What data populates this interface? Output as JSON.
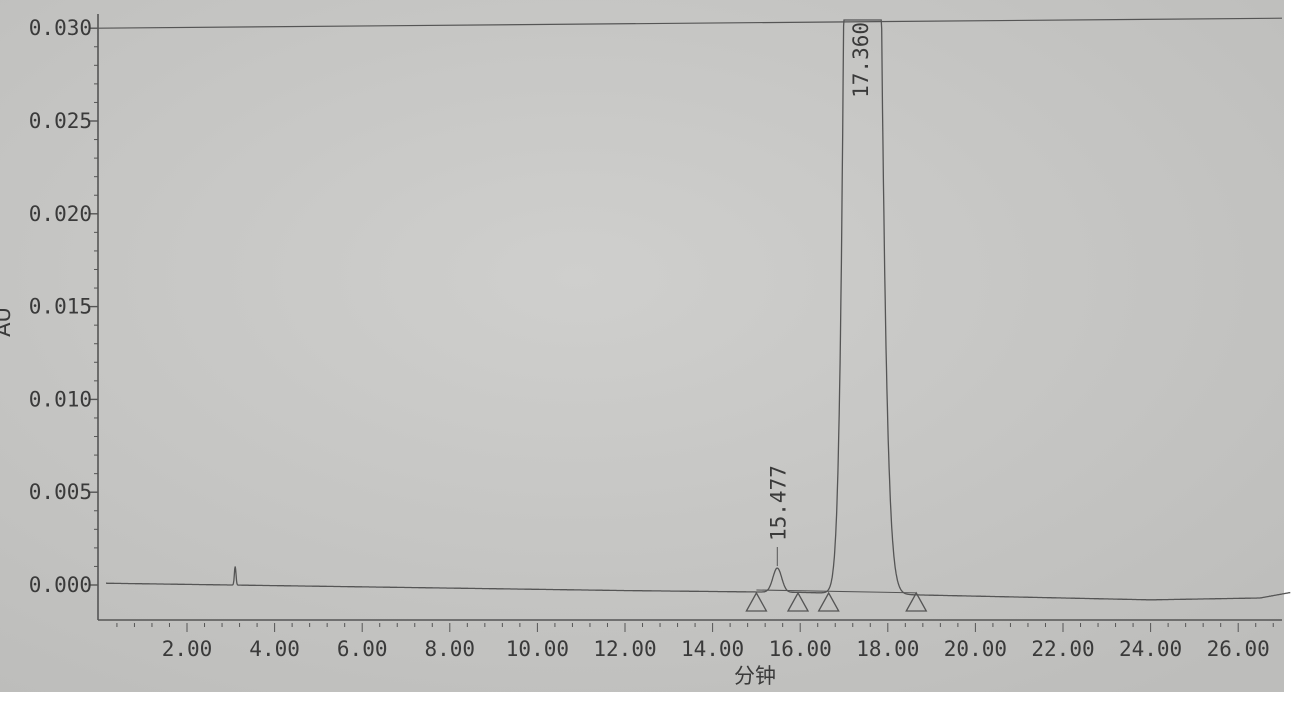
{
  "chart_data": {
    "type": "line",
    "title": "",
    "xlabel": "分钟",
    "ylabel": "AU",
    "xlim": [
      0,
      27.2
    ],
    "ylim": [
      -0.0019,
      0.0305
    ],
    "x_ticks": [
      "2.00",
      "4.00",
      "6.00",
      "8.00",
      "10.00",
      "12.00",
      "14.00",
      "16.00",
      "18.00",
      "20.00",
      "22.00",
      "24.00",
      "26.00"
    ],
    "y_ticks": [
      "0.000",
      "0.005",
      "0.010",
      "0.015",
      "0.020",
      "0.025",
      "0.030"
    ],
    "grid": false,
    "baseline": [
      [
        0,
        0.0001
      ],
      [
        6,
        -0.0001
      ],
      [
        12,
        -0.0003
      ],
      [
        16,
        -0.0004
      ],
      [
        20,
        -0.0006
      ],
      [
        24,
        -0.0008
      ],
      [
        26.5,
        -0.0007
      ],
      [
        27.2,
        -0.0004
      ]
    ],
    "peaks": [
      {
        "rt": 3.1,
        "height": 0.001,
        "width": 0.04,
        "label": ""
      },
      {
        "rt": 15.477,
        "height": 0.0013,
        "width": 0.22,
        "label": "15.477"
      },
      {
        "rt": 17.36,
        "height": 0.2,
        "width": 0.42,
        "label": "17.360",
        "off_scale": true
      }
    ],
    "integration_markers": [
      15.0,
      15.95,
      16.65,
      18.65
    ],
    "colors": {
      "paper": "#c8c8c6",
      "ink": "#555555"
    }
  }
}
